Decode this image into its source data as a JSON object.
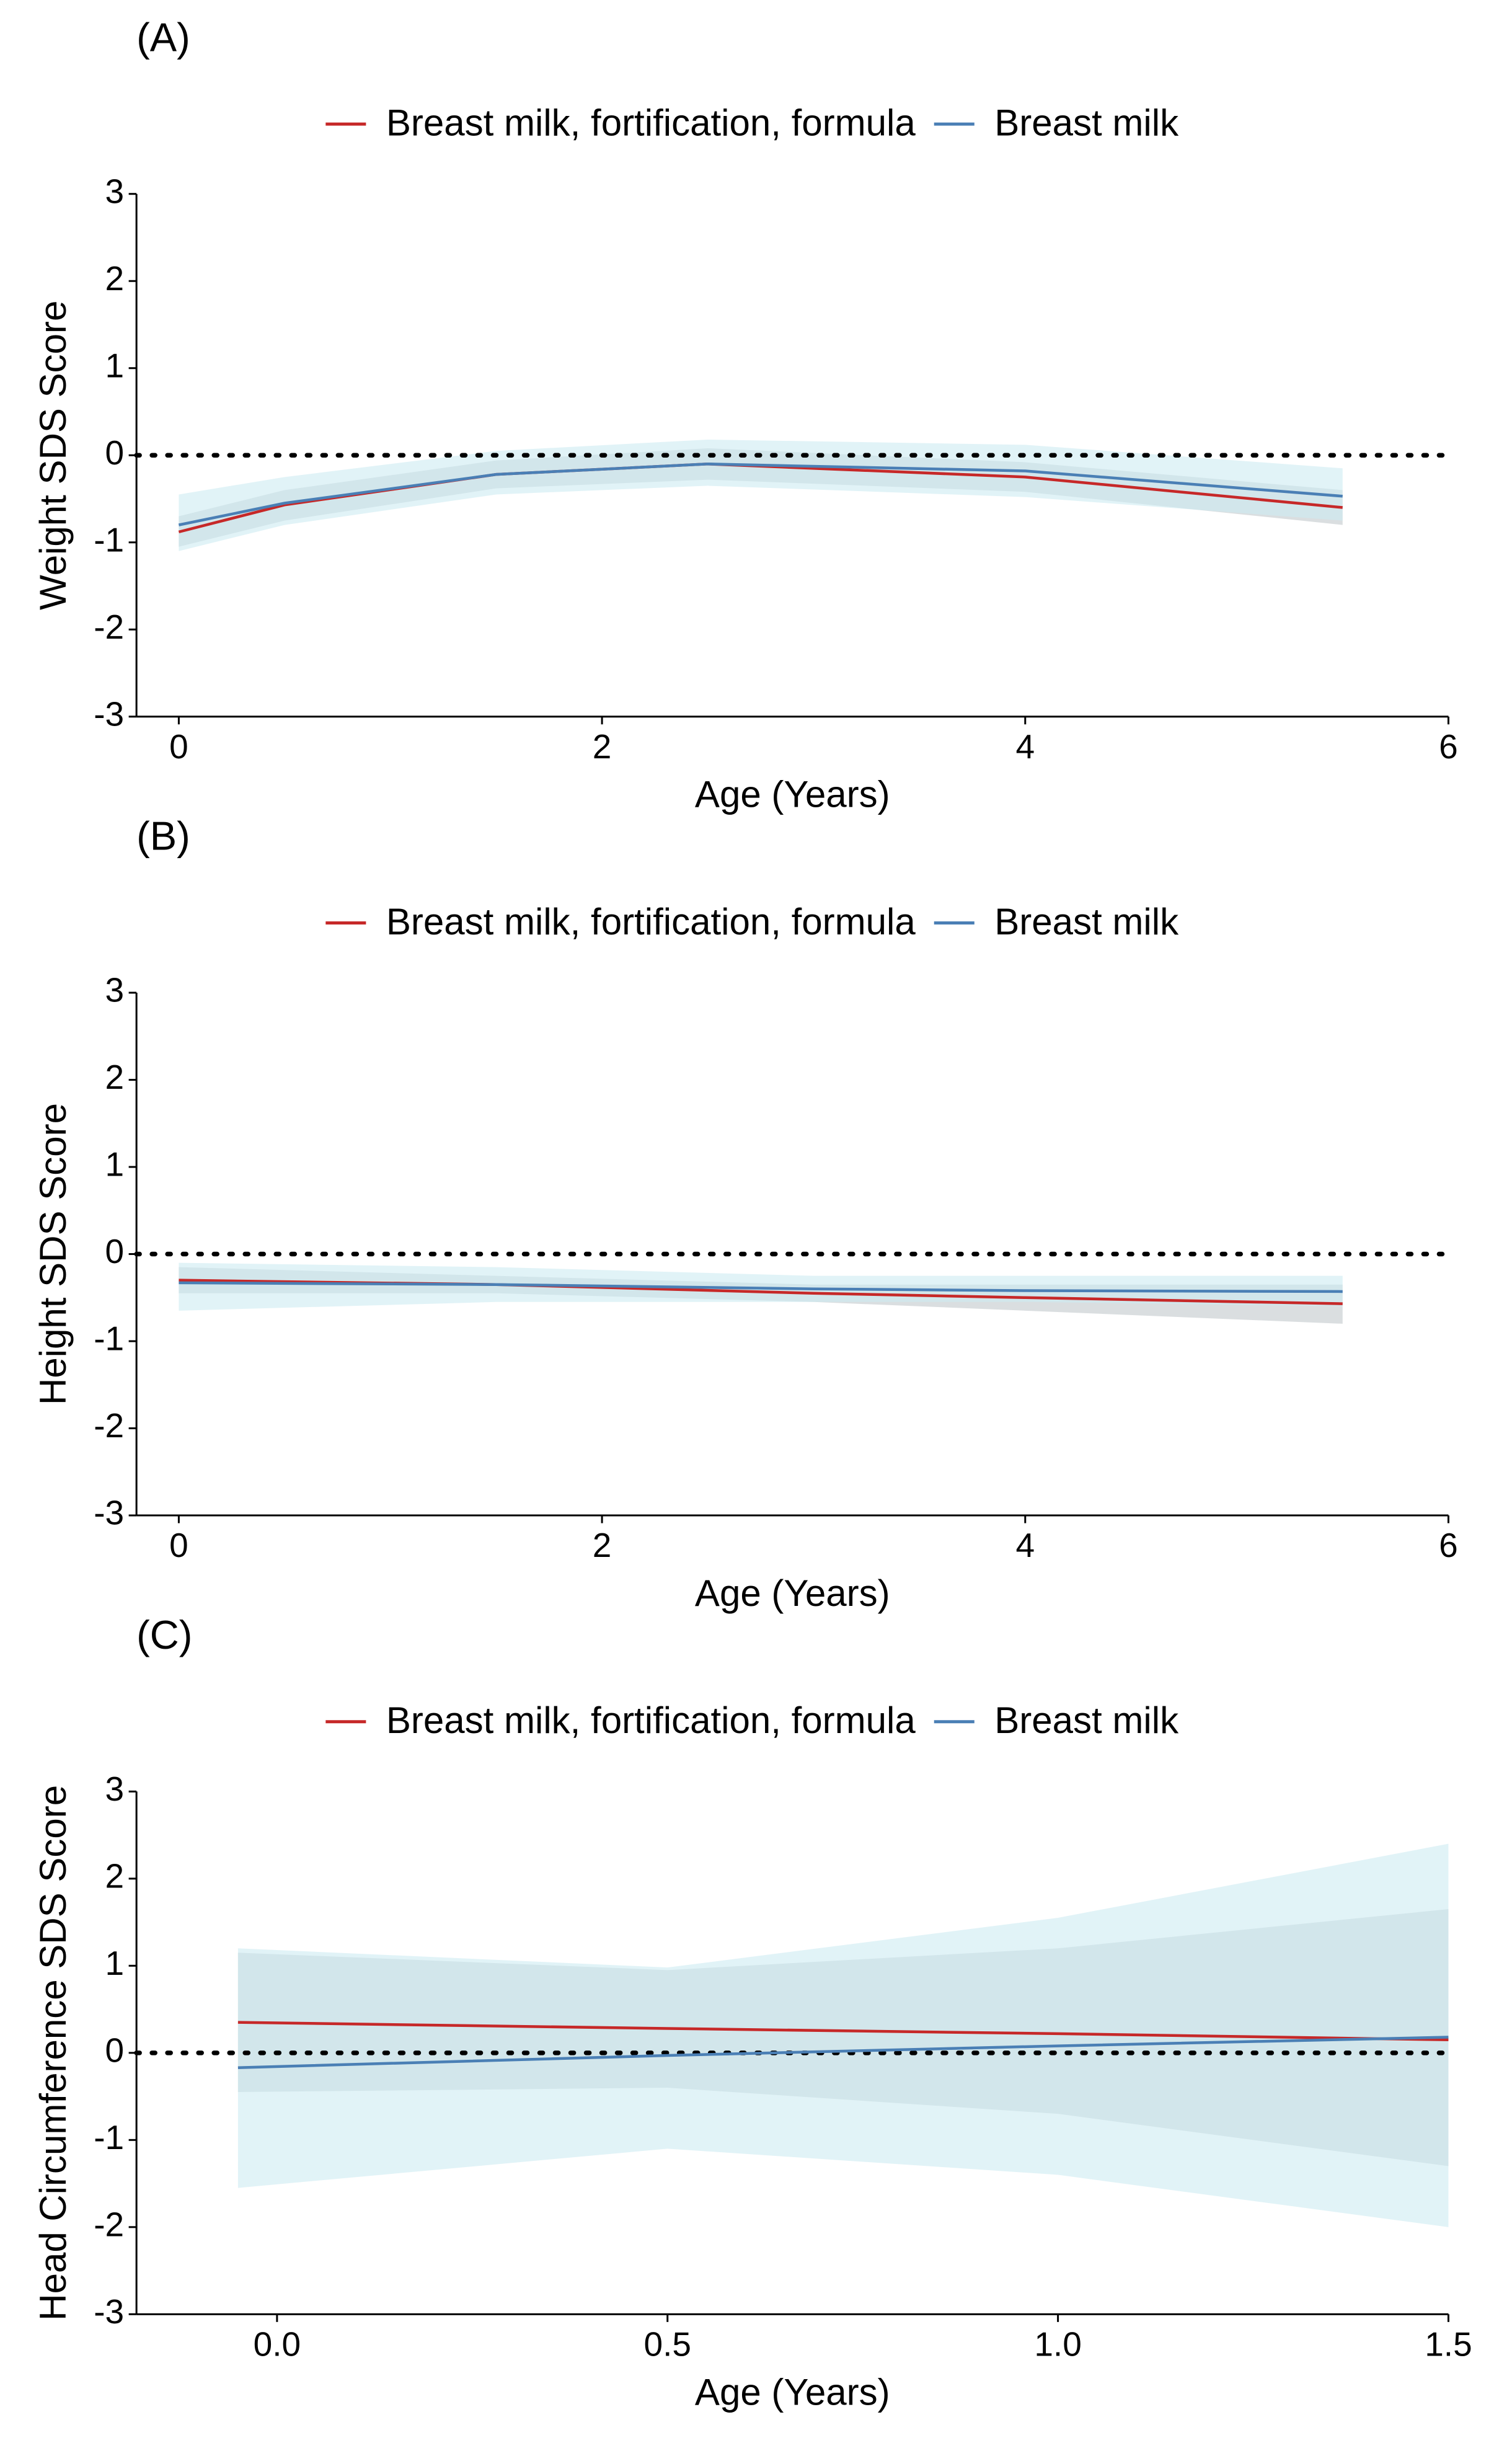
{
  "chart_data": [
    {
      "type": "line",
      "title": "(A)",
      "x_label": "Age (Years)",
      "y_label": "Weight SDS Score",
      "x": [
        0,
        0.5,
        1.5,
        2.5,
        4,
        5.5
      ],
      "series": [
        {
          "name": "Breast milk, fortification, formula",
          "color": "#c62828",
          "band_color": "#d3d8db",
          "values": [
            -0.88,
            -0.57,
            -0.22,
            -0.1,
            -0.25,
            -0.6
          ],
          "lower": [
            -1.05,
            -0.75,
            -0.38,
            -0.28,
            -0.42,
            -0.8
          ],
          "upper": [
            -0.7,
            -0.4,
            -0.06,
            0.08,
            -0.08,
            -0.4
          ]
        },
        {
          "name": "Breast milk",
          "color": "#4a7fb5",
          "band_color": "#cdebf1",
          "values": [
            -0.8,
            -0.55,
            -0.22,
            -0.1,
            -0.18,
            -0.47
          ],
          "lower": [
            -1.1,
            -0.8,
            -0.45,
            -0.35,
            -0.48,
            -0.75
          ],
          "upper": [
            -0.45,
            -0.25,
            0.05,
            0.18,
            0.12,
            -0.15
          ]
        }
      ],
      "xlim": [
        -0.2,
        6
      ],
      "xticks": [
        0,
        2,
        4,
        6
      ],
      "ylim": [
        -3,
        3
      ],
      "yticks": [
        -3,
        -2,
        -1,
        0,
        1,
        2,
        3
      ],
      "hline": 0
    },
    {
      "type": "line",
      "title": "(B)",
      "x_label": "Age (Years)",
      "y_label": "Height SDS Score",
      "x": [
        0,
        1.5,
        3,
        4,
        5.5
      ],
      "series": [
        {
          "name": "Breast milk, fortification, formula",
          "color": "#c62828",
          "band_color": "#d3d8db",
          "values": [
            -0.3,
            -0.35,
            -0.45,
            -0.5,
            -0.57
          ],
          "lower": [
            -0.45,
            -0.45,
            -0.55,
            -0.65,
            -0.8
          ],
          "upper": [
            -0.15,
            -0.25,
            -0.35,
            -0.35,
            -0.35
          ]
        },
        {
          "name": "Breast milk",
          "color": "#4a7fb5",
          "band_color": "#cdebf1",
          "values": [
            -0.33,
            -0.35,
            -0.4,
            -0.42,
            -0.43
          ],
          "lower": [
            -0.65,
            -0.55,
            -0.55,
            -0.55,
            -0.6
          ],
          "upper": [
            -0.1,
            -0.15,
            -0.25,
            -0.25,
            -0.25
          ]
        }
      ],
      "xlim": [
        -0.2,
        6
      ],
      "xticks": [
        0,
        2,
        4,
        6
      ],
      "ylim": [
        -3,
        3
      ],
      "yticks": [
        -3,
        -2,
        -1,
        0,
        1,
        2,
        3
      ],
      "hline": 0
    },
    {
      "type": "line",
      "title": "(C)",
      "x_label": "Age (Years)",
      "y_label": "Head Circumference SDS Score",
      "x": [
        -0.05,
        0.5,
        1.0,
        1.5
      ],
      "series": [
        {
          "name": "Breast milk, fortification, formula",
          "color": "#c62828",
          "band_color": "#d3d8db",
          "values": [
            0.35,
            0.28,
            0.22,
            0.15
          ],
          "lower": [
            -0.45,
            -0.4,
            -0.7,
            -1.3
          ],
          "upper": [
            1.15,
            0.95,
            1.2,
            1.65
          ]
        },
        {
          "name": "Breast milk",
          "color": "#4a7fb5",
          "band_color": "#cdebf1",
          "values": [
            -0.17,
            -0.03,
            0.08,
            0.18
          ],
          "lower": [
            -1.55,
            -1.1,
            -1.4,
            -2.0
          ],
          "upper": [
            1.2,
            0.98,
            1.55,
            2.4
          ]
        }
      ],
      "xlim": [
        -0.18,
        1.5
      ],
      "xticks": [
        {
          "value": 0,
          "label": "0.0"
        },
        0.5,
        {
          "value": 1,
          "label": "1.0"
        },
        1.5
      ],
      "ylim": [
        -3,
        3
      ],
      "yticks": [
        -3,
        -2,
        -1,
        0,
        1,
        2,
        3
      ],
      "hline": 0
    }
  ]
}
